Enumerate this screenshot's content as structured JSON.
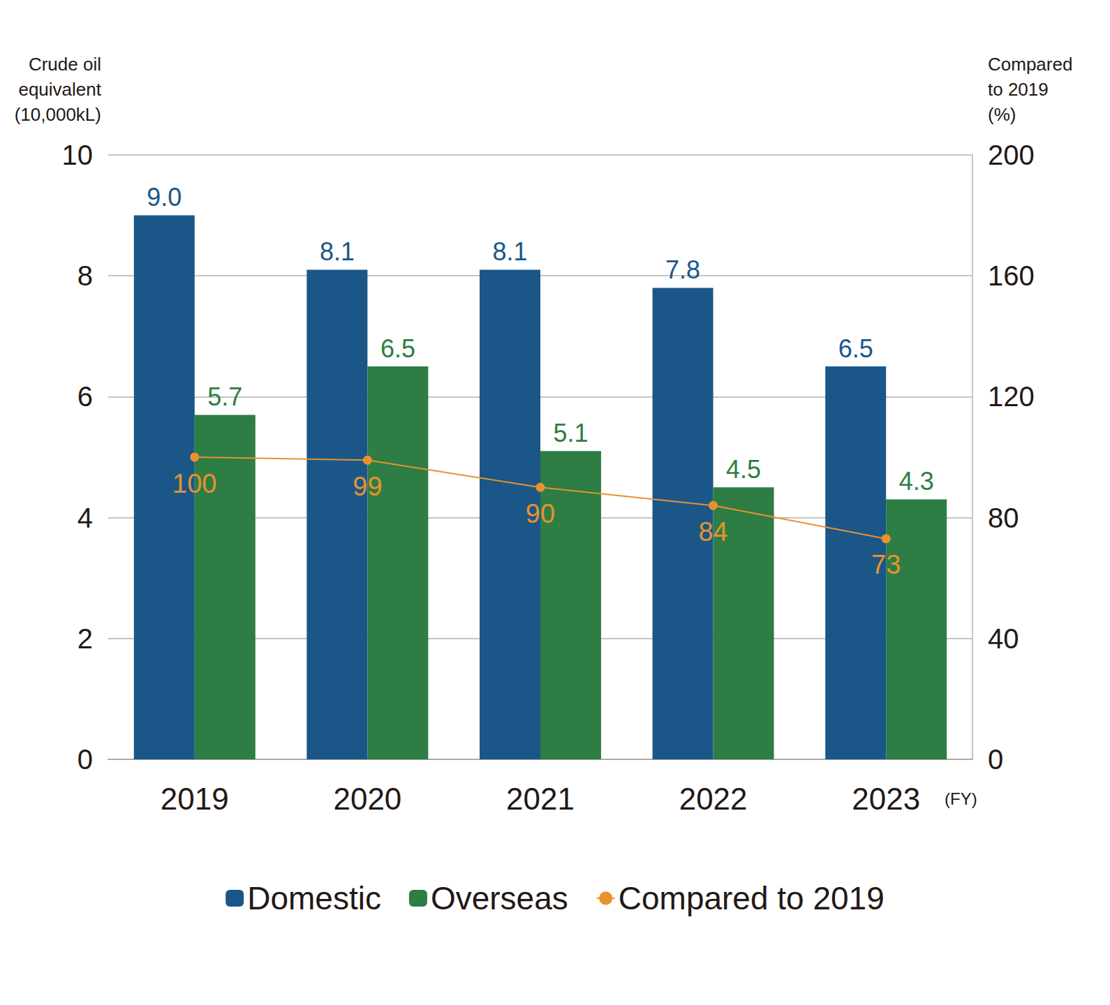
{
  "chart_data": {
    "type": "bar",
    "ylabel": "Crude oil\nequivalent\n(10,000kL)",
    "y2label": "Compared\nto 2019\n(%)",
    "xlabel": "(FY)",
    "categories": [
      "2019",
      "2020",
      "2021",
      "2022",
      "2023"
    ],
    "series": [
      {
        "name": "Domestic",
        "type": "bar",
        "color": "#1a5788",
        "values": [
          9.0,
          8.1,
          8.1,
          7.8,
          6.5
        ],
        "value_labels": [
          "9.0",
          "8.1",
          "8.1",
          "7.8",
          "6.5"
        ]
      },
      {
        "name": "Overseas",
        "type": "bar",
        "color": "#2e7d44",
        "values": [
          5.7,
          6.5,
          5.1,
          4.5,
          4.3
        ],
        "value_labels": [
          "5.7",
          "6.5",
          "5.1",
          "4.5",
          "4.3"
        ]
      },
      {
        "name": "Compared to 2019",
        "type": "line",
        "axis": "y2",
        "color": "#e8922e",
        "marker": "circle",
        "line_style": "solid",
        "values": [
          100,
          99,
          90,
          84,
          73
        ]
      }
    ],
    "ylim": [
      0,
      10
    ],
    "yticks": [
      0,
      2,
      4,
      6,
      8,
      10
    ],
    "y2lim": [
      0,
      200
    ],
    "y2ticks": [
      0,
      40,
      80,
      120,
      160,
      200
    ],
    "grid": true,
    "legend": "bottom",
    "data_labels": true
  }
}
